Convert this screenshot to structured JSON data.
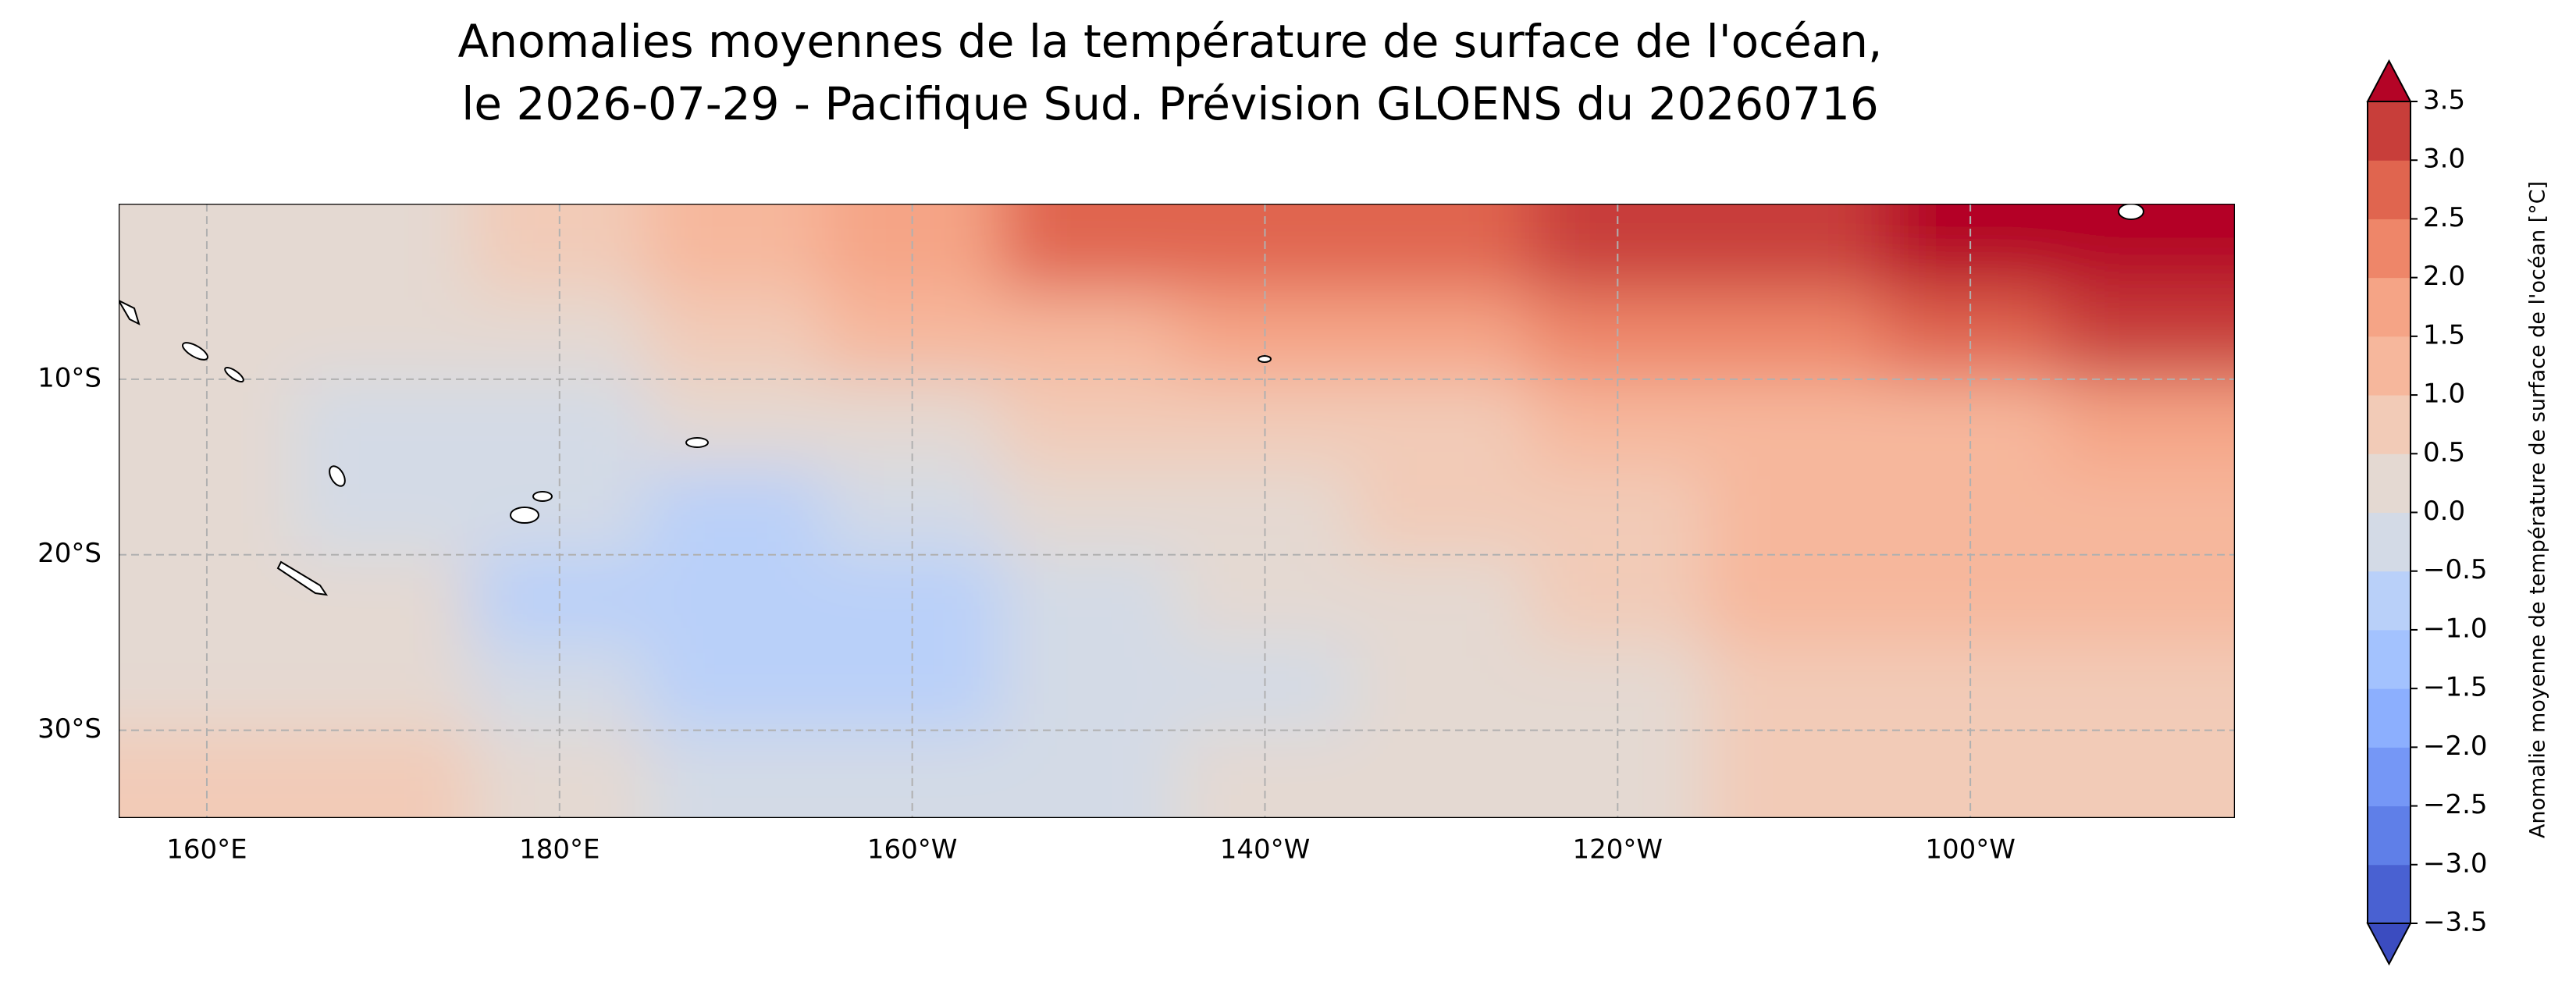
{
  "chart_data": {
    "type": "contourf-map",
    "title": [
      "Anomalies moyennes de la température de surface de l'océan,",
      "le 2026-07-29 - Pacifique Sud. Prévision GLOENS du 20260716"
    ],
    "xlim": [
      155,
      275
    ],
    "ylim": [
      -35,
      0
    ],
    "xticks": [
      {
        "value": 160,
        "label": "160°E"
      },
      {
        "value": 180,
        "label": "180°E"
      },
      {
        "value": 200,
        "label": "160°W"
      },
      {
        "value": 220,
        "label": "140°W"
      },
      {
        "value": 240,
        "label": "120°W"
      },
      {
        "value": 260,
        "label": "100°W"
      }
    ],
    "yticks": [
      {
        "value": -10,
        "label": "10°S"
      },
      {
        "value": -20,
        "label": "20°S"
      },
      {
        "value": -30,
        "label": "30°S"
      }
    ],
    "grid": true,
    "colorbar": {
      "label": "Anomalie moyenne de température de surface de l'océan [°C]",
      "ticks": [
        {
          "value": -3.5,
          "label": "−3.5"
        },
        {
          "value": -3.0,
          "label": "−3.0"
        },
        {
          "value": -2.5,
          "label": "−2.5"
        },
        {
          "value": -2.0,
          "label": "−2.0"
        },
        {
          "value": -1.5,
          "label": "−1.5"
        },
        {
          "value": -1.0,
          "label": "−1.0"
        },
        {
          "value": -0.5,
          "label": "−0.5"
        },
        {
          "value": 0,
          "label": "0.0"
        },
        0.5,
        {
          "value": 1.0,
          "label": "1.0"
        },
        1.5,
        {
          "value": 2.0,
          "label": "2.0"
        },
        2.5,
        {
          "value": 3.0,
          "label": "3.0"
        },
        3.5
      ],
      "colors": [
        "#4961d2",
        "#5f7fe8",
        "#7597f6",
        "#8caffe",
        "#a3c2fe",
        "#b9d0f9",
        "#d3dae6",
        "#e4d9d2",
        "#f2cbb7",
        "#f6b79c",
        "#f5a486",
        "#ee8669",
        "#e0654f",
        "#c83e3a"
      ],
      "under_color": "#3b4cc0",
      "over_color": "#b40426"
    },
    "field": {
      "lon": [
        160,
        170,
        180,
        190,
        200,
        210,
        220,
        230,
        240,
        250,
        260,
        270
      ],
      "lat": [
        -2.5,
        -7.5,
        -12.5,
        -17.5,
        -22.5,
        -27.5,
        -32.5
      ],
      "values": [
        [
          0.3,
          0.4,
          0.8,
          1.3,
          2.0,
          2.6,
          2.6,
          3.0,
          3.3,
          3.4,
          3.6,
          3.6
        ],
        [
          0.1,
          0.2,
          0.4,
          0.8,
          1.2,
          1.5,
          1.7,
          2.0,
          2.2,
          2.4,
          2.8,
          3.2
        ],
        [
          0.1,
          0.0,
          -0.1,
          0.1,
          0.4,
          0.6,
          0.8,
          0.9,
          1.1,
          1.3,
          1.5,
          1.9
        ],
        [
          0.2,
          -0.2,
          -0.4,
          -0.5,
          -0.2,
          0.2,
          0.5,
          0.8,
          1.0,
          1.2,
          1.3,
          1.4
        ],
        [
          0.4,
          0.1,
          -0.6,
          -0.8,
          -0.6,
          -0.3,
          0.1,
          0.5,
          0.8,
          1.1,
          1.2,
          1.2
        ],
        [
          0.5,
          0.3,
          -0.4,
          -0.7,
          -0.8,
          -0.4,
          -0.1,
          0.3,
          0.5,
          0.8,
          1.0,
          1.0
        ],
        [
          0.7,
          0.6,
          0.1,
          -0.4,
          -0.3,
          -0.2,
          0.2,
          0.3,
          0.3,
          0.6,
          0.7,
          0.8
        ]
      ]
    }
  }
}
